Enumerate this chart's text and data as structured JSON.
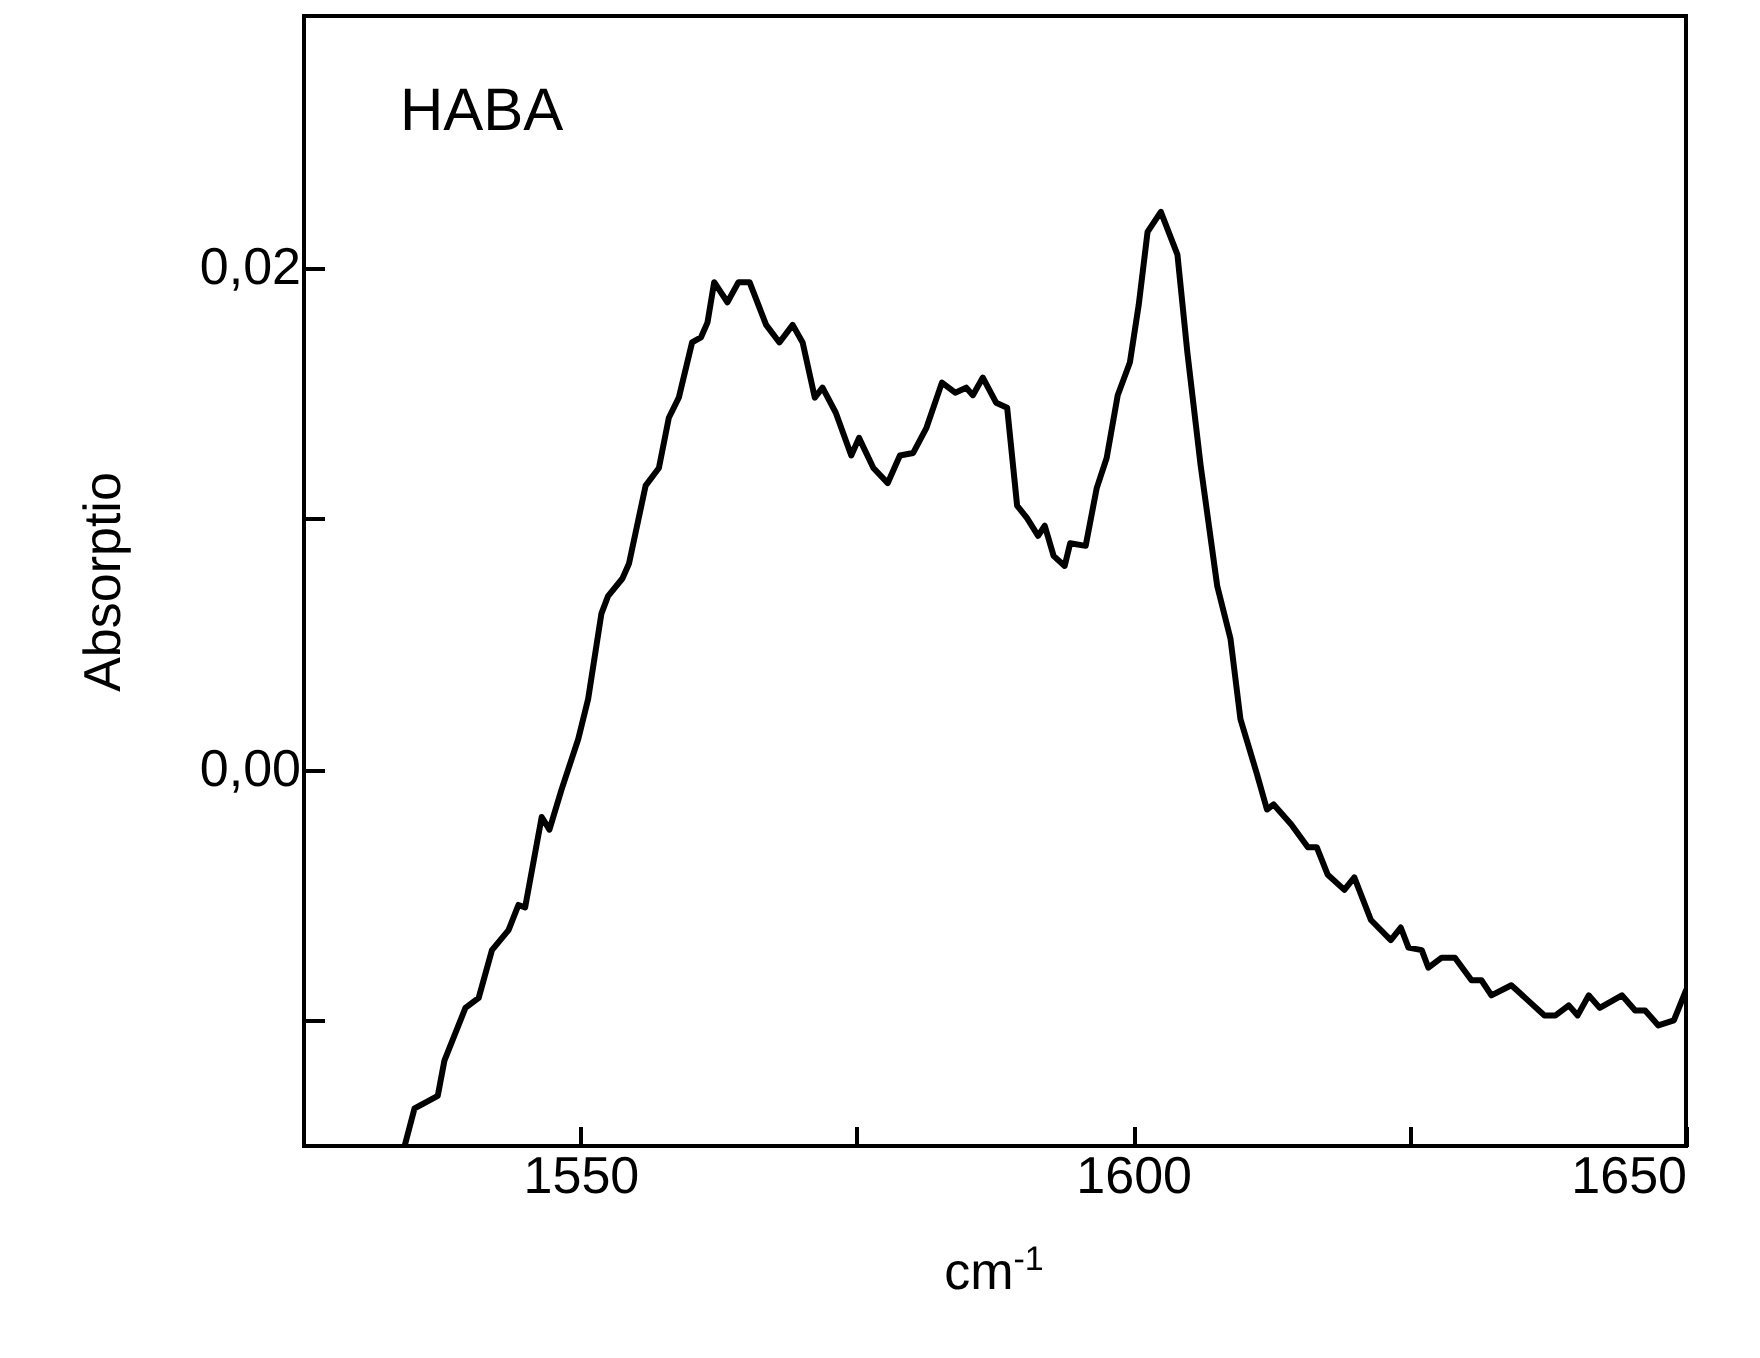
{
  "chart_data": {
    "type": "line",
    "xlabel": "cm$^{-1}$",
    "ylabel": "Absorptio",
    "annotations": [
      "HABA"
    ],
    "xlim": [
      1525,
      1650
    ],
    "xticks": [
      1550,
      {
        "value": 1575,
        "label": null
      },
      1600,
      {
        "value": 1625,
        "label": null
      },
      1650
    ],
    "ylim": [
      -0.015,
      0.03
    ],
    "yticks": [
      {
        "value": -0.01,
        "label": null
      },
      {
        "value": 0,
        "label": "0,00"
      },
      {
        "value": 0.01,
        "label": null
      },
      {
        "value": 0.02,
        "label": "0,02"
      }
    ],
    "grid": false,
    "marker": "none",
    "line_style": "solid",
    "series": [
      {
        "color": "#000000",
        "x": [
          1534.1,
          1535.0,
          1537.1,
          1537.7,
          1539.6,
          1540.8,
          1542.0,
          1543.5,
          1544.4,
          1545.0,
          1546.5,
          1547.2,
          1548.3,
          1549.8,
          1550.7,
          1551.9,
          1552.5,
          1553.8,
          1554.4,
          1555.9,
          1557.1,
          1558.0,
          1558.9,
          1560.1,
          1560.9,
          1561.5,
          1562.1,
          1563.3,
          1564.3,
          1565.3,
          1566.8,
          1568.0,
          1569.2,
          1570.1,
          1571.2,
          1571.9,
          1573.1,
          1574.5,
          1575.2,
          1576.5,
          1577.8,
          1578.9,
          1580.1,
          1581.3,
          1582.7,
          1583.9,
          1584.9,
          1585.5,
          1586.4,
          1587.6,
          1588.6,
          1589.5,
          1590.4,
          1591.4,
          1592.0,
          1592.8,
          1593.8,
          1594.3,
          1595.7,
          1596.7,
          1597.6,
          1598.6,
          1599.7,
          1600.5,
          1601.3,
          1602.5,
          1604.0,
          1604.9,
          1606.1,
          1607.6,
          1608.8,
          1609.7,
          1611.2,
          1612.1,
          1612.7,
          1614.3,
          1615.8,
          1616.6,
          1617.6,
          1619.1,
          1620.0,
          1621.5,
          1623.3,
          1624.2,
          1624.9,
          1626.1,
          1626.7,
          1627.9,
          1629.1,
          1630.6,
          1631.5,
          1632.4,
          1634.2,
          1635.7,
          1637.2,
          1638.2,
          1639.4,
          1640.2,
          1641.2,
          1642.2,
          1644.2,
          1645.4,
          1646.3,
          1647.5,
          1648.9,
          1650.0
        ],
        "values": [
          -0.015,
          -0.0135,
          -0.013,
          -0.0116,
          -0.0095,
          -0.0091,
          -0.0072,
          -0.0064,
          -0.0054,
          -0.0055,
          -0.0019,
          -0.0024,
          -0.0008,
          0.0012,
          0.0028,
          0.0062,
          0.0069,
          0.0076,
          0.0082,
          0.0113,
          0.012,
          0.014,
          0.0148,
          0.017,
          0.0172,
          0.0178,
          0.0194,
          0.0186,
          0.0194,
          0.0194,
          0.0177,
          0.017,
          0.0177,
          0.017,
          0.0148,
          0.0152,
          0.0142,
          0.0125,
          0.0132,
          0.012,
          0.0114,
          0.0125,
          0.0126,
          0.0136,
          0.0154,
          0.015,
          0.0152,
          0.0149,
          0.0156,
          0.0146,
          0.0144,
          0.0105,
          0.01,
          0.0093,
          0.0097,
          0.0085,
          0.0081,
          0.009,
          0.0089,
          0.0112,
          0.0124,
          0.0149,
          0.0162,
          0.0185,
          0.0214,
          0.0222,
          0.0205,
          0.0166,
          0.0121,
          0.0073,
          0.0052,
          0.002,
          -0.0002,
          -0.0016,
          -0.0014,
          -0.0022,
          -0.0031,
          -0.0031,
          -0.0042,
          -0.0048,
          -0.0043,
          -0.006,
          -0.0068,
          -0.0063,
          -0.0071,
          -0.0072,
          -0.0079,
          -0.0075,
          -0.0075,
          -0.0084,
          -0.0084,
          -0.009,
          -0.0086,
          -0.0092,
          -0.0098,
          -0.0098,
          -0.0094,
          -0.0098,
          -0.009,
          -0.0095,
          -0.009,
          -0.0096,
          -0.0096,
          -0.0102,
          -0.01,
          -0.0088
        ]
      }
    ]
  }
}
